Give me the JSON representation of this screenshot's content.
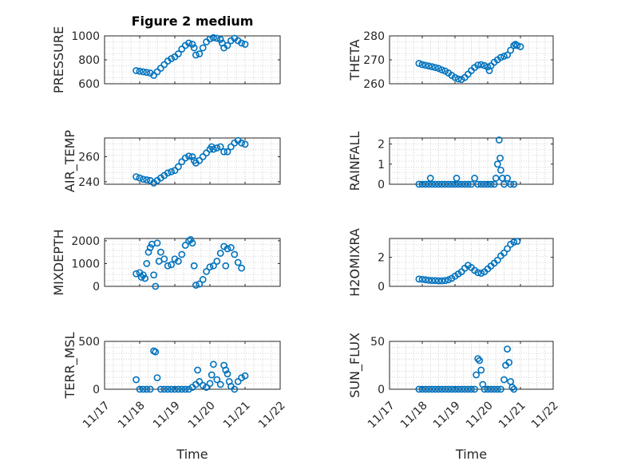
{
  "figure": {
    "title": "Figure 2 medium"
  },
  "colors": {
    "marker": "#0072BD",
    "axis": "#262626"
  },
  "chart_data": [
    {
      "type": "scatter",
      "id": "pressure",
      "ylabel": "PRESSURE",
      "xlim": [
        "11/17",
        "11/22"
      ],
      "ylim": [
        600,
        1000
      ],
      "yticks": [
        600,
        800,
        1000
      ],
      "yticklabels": [
        "600",
        "800",
        "1000"
      ],
      "grid": true,
      "xticklabels_visible": false,
      "title": "Figure 2 medium",
      "points": [
        [
          0.9,
          710
        ],
        [
          1.0,
          705
        ],
        [
          1.1,
          700
        ],
        [
          1.2,
          695
        ],
        [
          1.3,
          690
        ],
        [
          1.4,
          670
        ],
        [
          1.5,
          700
        ],
        [
          1.6,
          730
        ],
        [
          1.7,
          760
        ],
        [
          1.8,
          790
        ],
        [
          1.9,
          810
        ],
        [
          2.0,
          825
        ],
        [
          2.1,
          850
        ],
        [
          2.2,
          890
        ],
        [
          2.3,
          920
        ],
        [
          2.4,
          940
        ],
        [
          2.5,
          930
        ],
        [
          2.55,
          900
        ],
        [
          2.6,
          840
        ],
        [
          2.7,
          850
        ],
        [
          2.8,
          900
        ],
        [
          2.9,
          950
        ],
        [
          3.0,
          975
        ],
        [
          3.1,
          985
        ],
        [
          3.2,
          980
        ],
        [
          3.3,
          970
        ],
        [
          3.35,
          940
        ],
        [
          3.4,
          900
        ],
        [
          3.5,
          920
        ],
        [
          3.6,
          960
        ],
        [
          3.7,
          980
        ],
        [
          3.8,
          960
        ],
        [
          3.9,
          940
        ],
        [
          4.0,
          930
        ]
      ],
      "x_labels": [
        "11/17",
        "11/18",
        "11/19",
        "11/20",
        "11/21",
        "11/22"
      ]
    },
    {
      "type": "scatter",
      "id": "theta",
      "ylabel": "THETA",
      "xlim": [
        "11/17",
        "11/22"
      ],
      "ylim": [
        260,
        280
      ],
      "yticks": [
        260,
        270,
        280
      ],
      "yticklabels": [
        "260",
        "270",
        "280"
      ],
      "grid": true,
      "xticklabels_visible": false,
      "points": [
        [
          0.9,
          268.5
        ],
        [
          1.0,
          268
        ],
        [
          1.1,
          267.7
        ],
        [
          1.2,
          267.4
        ],
        [
          1.3,
          267.1
        ],
        [
          1.4,
          266.8
        ],
        [
          1.5,
          266.4
        ],
        [
          1.6,
          265.8
        ],
        [
          1.7,
          265.3
        ],
        [
          1.8,
          264.5
        ],
        [
          1.9,
          263.5
        ],
        [
          2.0,
          262.6
        ],
        [
          2.1,
          262
        ],
        [
          2.2,
          261.8
        ],
        [
          2.3,
          262.6
        ],
        [
          2.4,
          264
        ],
        [
          2.5,
          265.5
        ],
        [
          2.6,
          266.8
        ],
        [
          2.7,
          267.8
        ],
        [
          2.8,
          268
        ],
        [
          2.9,
          267.6
        ],
        [
          3.0,
          267
        ],
        [
          3.05,
          265.5
        ],
        [
          3.1,
          267.5
        ],
        [
          3.2,
          269
        ],
        [
          3.3,
          270
        ],
        [
          3.4,
          271
        ],
        [
          3.5,
          271.5
        ],
        [
          3.6,
          272
        ],
        [
          3.7,
          274
        ],
        [
          3.8,
          276
        ],
        [
          3.85,
          276.5
        ],
        [
          3.9,
          276
        ],
        [
          4.0,
          275.5
        ]
      ],
      "x_labels": [
        "11/17",
        "11/18",
        "11/19",
        "11/20",
        "11/21",
        "11/22"
      ]
    },
    {
      "type": "scatter",
      "id": "air_temp",
      "ylabel": "AIR_TEMP",
      "xlim": [
        "11/17",
        "11/22"
      ],
      "ylim": [
        238,
        275
      ],
      "yticks": [
        240,
        260
      ],
      "yticklabels": [
        "240",
        "260"
      ],
      "grid": true,
      "xticklabels_visible": false,
      "points": [
        [
          0.9,
          244
        ],
        [
          1.0,
          243
        ],
        [
          1.1,
          242
        ],
        [
          1.2,
          241.5
        ],
        [
          1.3,
          241
        ],
        [
          1.4,
          239
        ],
        [
          1.5,
          241
        ],
        [
          1.6,
          243
        ],
        [
          1.7,
          245
        ],
        [
          1.8,
          247
        ],
        [
          1.9,
          248
        ],
        [
          2.0,
          249
        ],
        [
          2.1,
          252
        ],
        [
          2.2,
          256
        ],
        [
          2.3,
          259
        ],
        [
          2.4,
          260.5
        ],
        [
          2.5,
          260
        ],
        [
          2.55,
          257
        ],
        [
          2.6,
          255
        ],
        [
          2.7,
          257
        ],
        [
          2.8,
          260
        ],
        [
          2.9,
          263
        ],
        [
          3.0,
          266
        ],
        [
          3.05,
          268
        ],
        [
          3.1,
          266
        ],
        [
          3.2,
          267
        ],
        [
          3.3,
          268
        ],
        [
          3.4,
          264
        ],
        [
          3.5,
          264
        ],
        [
          3.6,
          268
        ],
        [
          3.7,
          271
        ],
        [
          3.8,
          273
        ],
        [
          3.9,
          271
        ],
        [
          4.0,
          270
        ]
      ],
      "x_labels": [
        "11/17",
        "11/18",
        "11/19",
        "11/20",
        "11/21",
        "11/22"
      ]
    },
    {
      "type": "scatter",
      "id": "rainfall",
      "ylabel": "RAINFALL",
      "xlim": [
        "11/17",
        "11/22"
      ],
      "ylim": [
        0,
        2.3
      ],
      "yticks": [
        0,
        1,
        2
      ],
      "yticklabels": [
        "0",
        "1",
        "2"
      ],
      "grid": true,
      "xticklabels_visible": false,
      "points": [
        [
          0.9,
          0
        ],
        [
          1.0,
          0
        ],
        [
          1.1,
          0
        ],
        [
          1.2,
          0
        ],
        [
          1.25,
          0.3
        ],
        [
          1.3,
          0
        ],
        [
          1.4,
          0
        ],
        [
          1.5,
          0
        ],
        [
          1.6,
          0
        ],
        [
          1.7,
          0
        ],
        [
          1.8,
          0
        ],
        [
          1.9,
          0
        ],
        [
          2.0,
          0
        ],
        [
          2.05,
          0.3
        ],
        [
          2.1,
          0
        ],
        [
          2.2,
          0
        ],
        [
          2.3,
          0
        ],
        [
          2.4,
          0
        ],
        [
          2.5,
          0
        ],
        [
          2.6,
          0.3
        ],
        [
          2.7,
          0
        ],
        [
          2.8,
          0
        ],
        [
          2.9,
          0
        ],
        [
          3.0,
          0
        ],
        [
          3.1,
          0
        ],
        [
          3.2,
          0
        ],
        [
          3.25,
          0.3
        ],
        [
          3.3,
          1.0
        ],
        [
          3.35,
          2.2
        ],
        [
          3.38,
          1.3
        ],
        [
          3.4,
          0.7
        ],
        [
          3.45,
          0.3
        ],
        [
          3.5,
          0
        ],
        [
          3.6,
          0.3
        ],
        [
          3.7,
          0
        ],
        [
          3.8,
          0
        ]
      ],
      "x_labels": [
        "11/17",
        "11/18",
        "11/19",
        "11/20",
        "11/21",
        "11/22"
      ]
    },
    {
      "type": "scatter",
      "id": "mixdepth",
      "ylabel": "MIXDEPTH",
      "xlim": [
        "11/17",
        "11/22"
      ],
      "ylim": [
        0,
        2100
      ],
      "yticks": [
        0,
        1000,
        2000
      ],
      "yticklabels": [
        "0",
        "1000",
        "2000"
      ],
      "grid": true,
      "xticklabels_visible": false,
      "points": [
        [
          0.9,
          550
        ],
        [
          1.0,
          600
        ],
        [
          1.05,
          400
        ],
        [
          1.1,
          500
        ],
        [
          1.15,
          350
        ],
        [
          1.2,
          1000
        ],
        [
          1.25,
          1500
        ],
        [
          1.3,
          1700
        ],
        [
          1.35,
          1850
        ],
        [
          1.4,
          500
        ],
        [
          1.45,
          0
        ],
        [
          1.5,
          1900
        ],
        [
          1.55,
          1100
        ],
        [
          1.6,
          1500
        ],
        [
          1.7,
          1200
        ],
        [
          1.8,
          900
        ],
        [
          1.9,
          950
        ],
        [
          2.0,
          1200
        ],
        [
          2.1,
          1100
        ],
        [
          2.2,
          1400
        ],
        [
          2.3,
          1800
        ],
        [
          2.4,
          2000
        ],
        [
          2.45,
          2050
        ],
        [
          2.5,
          1900
        ],
        [
          2.55,
          900
        ],
        [
          2.6,
          50
        ],
        [
          2.7,
          100
        ],
        [
          2.8,
          300
        ],
        [
          2.9,
          650
        ],
        [
          3.0,
          850
        ],
        [
          3.1,
          900
        ],
        [
          3.2,
          1100
        ],
        [
          3.3,
          1450
        ],
        [
          3.4,
          1750
        ],
        [
          3.45,
          900
        ],
        [
          3.5,
          1650
        ],
        [
          3.6,
          1700
        ],
        [
          3.7,
          1400
        ],
        [
          3.8,
          1050
        ],
        [
          3.9,
          800
        ]
      ],
      "x_labels": [
        "11/17",
        "11/18",
        "11/19",
        "11/20",
        "11/21",
        "11/22"
      ]
    },
    {
      "type": "scatter",
      "id": "h2omixra",
      "ylabel": "H2OMIXRA",
      "xlim": [
        "11/17",
        "11/22"
      ],
      "ylim": [
        0,
        3.3
      ],
      "yticks": [
        0,
        2
      ],
      "yticklabels": [
        "0",
        "2"
      ],
      "grid": true,
      "xticklabels_visible": false,
      "points": [
        [
          0.9,
          0.5
        ],
        [
          1.0,
          0.48
        ],
        [
          1.1,
          0.45
        ],
        [
          1.2,
          0.42
        ],
        [
          1.3,
          0.4
        ],
        [
          1.4,
          0.4
        ],
        [
          1.5,
          0.38
        ],
        [
          1.6,
          0.38
        ],
        [
          1.7,
          0.4
        ],
        [
          1.8,
          0.45
        ],
        [
          1.9,
          0.55
        ],
        [
          2.0,
          0.7
        ],
        [
          2.1,
          0.85
        ],
        [
          2.2,
          1.0
        ],
        [
          2.3,
          1.25
        ],
        [
          2.4,
          1.45
        ],
        [
          2.5,
          1.3
        ],
        [
          2.6,
          1.1
        ],
        [
          2.7,
          0.95
        ],
        [
          2.8,
          0.9
        ],
        [
          2.9,
          1.0
        ],
        [
          3.0,
          1.2
        ],
        [
          3.1,
          1.4
        ],
        [
          3.2,
          1.6
        ],
        [
          3.3,
          1.8
        ],
        [
          3.4,
          2.1
        ],
        [
          3.5,
          2.3
        ],
        [
          3.6,
          2.6
        ],
        [
          3.7,
          2.9
        ],
        [
          3.8,
          3.05
        ],
        [
          3.9,
          3.1
        ]
      ],
      "x_labels": [
        "11/17",
        "11/18",
        "11/19",
        "11/20",
        "11/21",
        "11/22"
      ]
    },
    {
      "type": "scatter",
      "id": "terr_msl",
      "ylabel": "TERR_MSL",
      "xlim": [
        "11/17",
        "11/22"
      ],
      "ylim": [
        0,
        500
      ],
      "yticks": [
        0,
        500
      ],
      "yticklabels": [
        "0",
        "500"
      ],
      "grid": true,
      "xticklabels_visible": true,
      "xlabel": "Time",
      "points": [
        [
          0.9,
          100
        ],
        [
          1.0,
          0
        ],
        [
          1.1,
          0
        ],
        [
          1.2,
          0
        ],
        [
          1.3,
          0
        ],
        [
          1.4,
          400
        ],
        [
          1.45,
          390
        ],
        [
          1.5,
          120
        ],
        [
          1.6,
          0
        ],
        [
          1.7,
          0
        ],
        [
          1.8,
          0
        ],
        [
          1.9,
          0
        ],
        [
          2.0,
          0
        ],
        [
          2.1,
          0
        ],
        [
          2.2,
          0
        ],
        [
          2.3,
          0
        ],
        [
          2.4,
          0
        ],
        [
          2.5,
          20
        ],
        [
          2.6,
          50
        ],
        [
          2.65,
          200
        ],
        [
          2.7,
          80
        ],
        [
          2.8,
          40
        ],
        [
          2.9,
          20
        ],
        [
          3.0,
          60
        ],
        [
          3.05,
          150
        ],
        [
          3.1,
          260
        ],
        [
          3.2,
          100
        ],
        [
          3.3,
          50
        ],
        [
          3.4,
          250
        ],
        [
          3.45,
          200
        ],
        [
          3.5,
          160
        ],
        [
          3.55,
          80
        ],
        [
          3.6,
          30
        ],
        [
          3.7,
          0
        ],
        [
          3.8,
          80
        ],
        [
          3.9,
          120
        ],
        [
          4.0,
          140
        ]
      ],
      "x_labels": [
        "11/17",
        "11/18",
        "11/19",
        "11/20",
        "11/21",
        "11/22"
      ]
    },
    {
      "type": "scatter",
      "id": "sun_flux",
      "ylabel": "SUN_FLUX",
      "xlim": [
        "11/17",
        "11/22"
      ],
      "ylim": [
        0,
        50
      ],
      "yticks": [
        0,
        50
      ],
      "yticklabels": [
        "0",
        "50"
      ],
      "grid": true,
      "xticklabels_visible": true,
      "xlabel": "Time",
      "points": [
        [
          0.9,
          0
        ],
        [
          1.0,
          0
        ],
        [
          1.1,
          0
        ],
        [
          1.2,
          0
        ],
        [
          1.3,
          0
        ],
        [
          1.4,
          0
        ],
        [
          1.5,
          0
        ],
        [
          1.6,
          0
        ],
        [
          1.7,
          0
        ],
        [
          1.8,
          0
        ],
        [
          1.9,
          0
        ],
        [
          2.0,
          0
        ],
        [
          2.1,
          0
        ],
        [
          2.2,
          0
        ],
        [
          2.3,
          0
        ],
        [
          2.4,
          0
        ],
        [
          2.5,
          0
        ],
        [
          2.6,
          0
        ],
        [
          2.65,
          15
        ],
        [
          2.7,
          32
        ],
        [
          2.75,
          30
        ],
        [
          2.8,
          20
        ],
        [
          2.85,
          5
        ],
        [
          2.9,
          0
        ],
        [
          3.0,
          0
        ],
        [
          3.1,
          0
        ],
        [
          3.2,
          0
        ],
        [
          3.3,
          0
        ],
        [
          3.4,
          0
        ],
        [
          3.5,
          10
        ],
        [
          3.55,
          25
        ],
        [
          3.6,
          42
        ],
        [
          3.65,
          28
        ],
        [
          3.7,
          8
        ],
        [
          3.75,
          2
        ],
        [
          3.8,
          0
        ]
      ],
      "x_labels": [
        "11/17",
        "11/18",
        "11/19",
        "11/20",
        "11/21",
        "11/22"
      ]
    }
  ]
}
